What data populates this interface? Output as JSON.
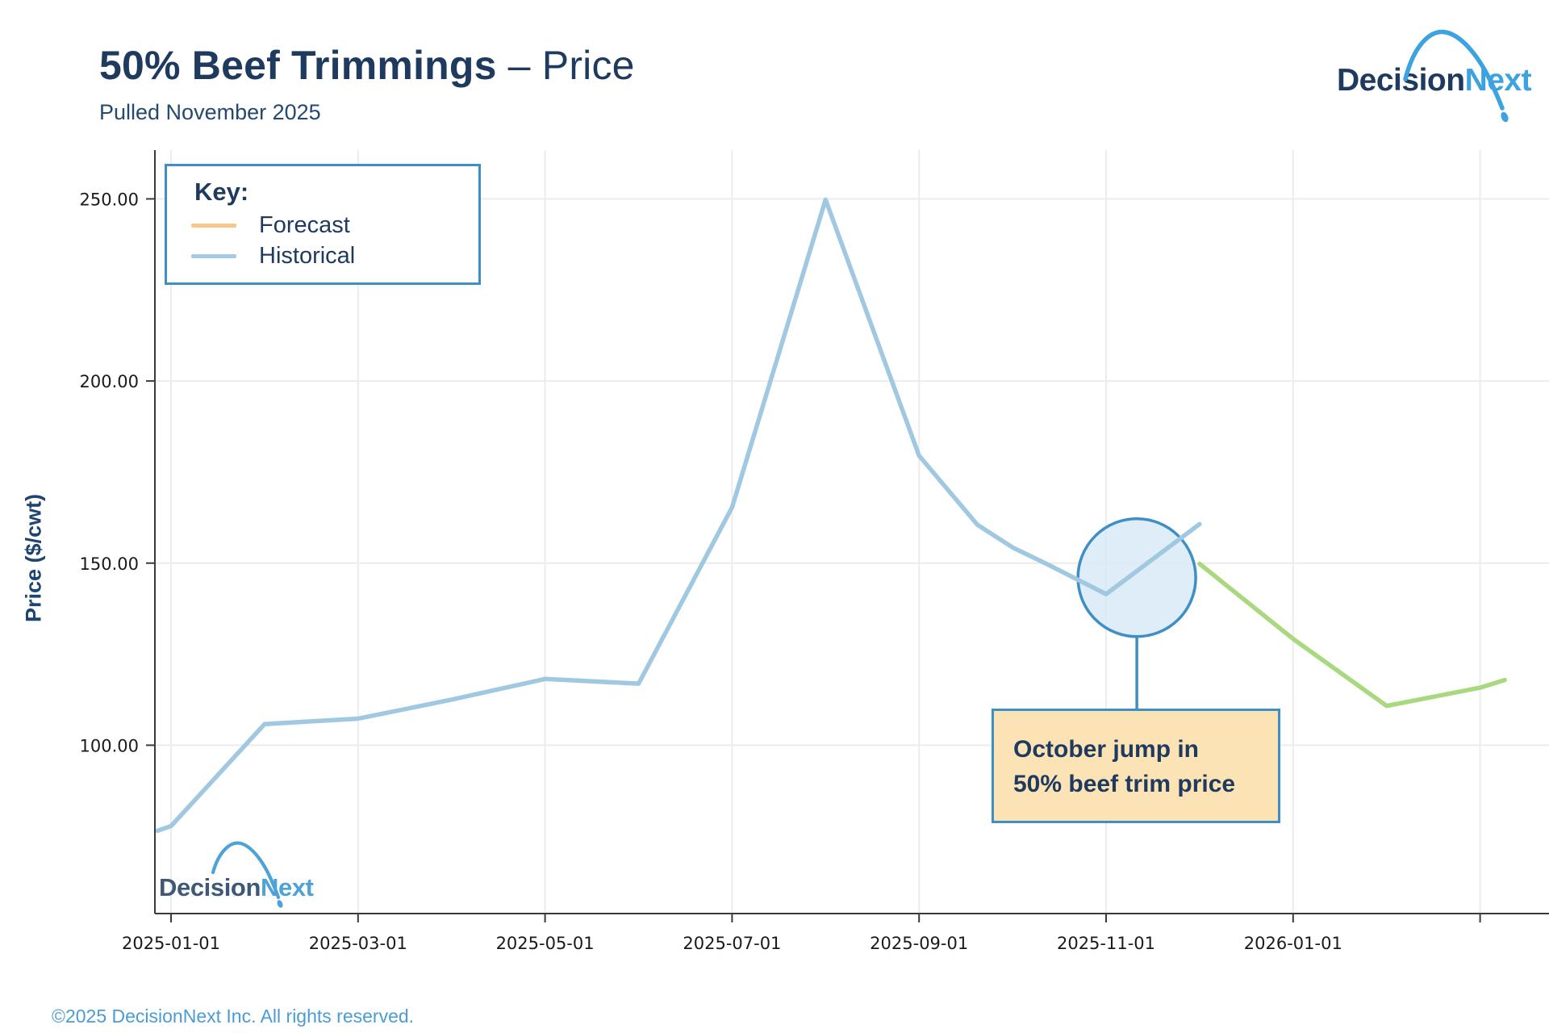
{
  "header": {
    "title_bold": "50% Beef Trimmings",
    "title_light": "– Price",
    "subtitle": "Pulled November 2025"
  },
  "logo": {
    "part1": "Decision",
    "part2": "Next"
  },
  "watermark_logo": {
    "part1": "Decision",
    "part2": "Next"
  },
  "legend": {
    "title": "Key:",
    "items": [
      {
        "label": "Forecast",
        "swatch_color": "#f5c88a"
      },
      {
        "label": "Historical",
        "swatch_color": "#a5cbe3"
      }
    ],
    "border_color": "#3e8fc6"
  },
  "annotation": {
    "line1": "October jump in",
    "line2": "50% beef trim price",
    "box_fill": "#fce3b5",
    "box_border": "#3e8fc6"
  },
  "footer": {
    "text": "©2025 DecisionNext Inc. All rights reserved."
  },
  "colors": {
    "historical_line": "#a0c8e0",
    "forecast_line": "#a9d87e",
    "gridline": "#ececec",
    "axis": "#3a3a3a",
    "tick_text": "#1a1a1a",
    "circle_stroke": "#3e8fc6",
    "circle_fill": "rgba(216,234,246,0.85)"
  },
  "chart_data": {
    "type": "line",
    "title": "50% Beef Trimmings – Price",
    "xlabel": "",
    "ylabel": "Price ($/cwt)",
    "ylim": [
      54,
      263
    ],
    "grid": true,
    "legend_position": "top-left",
    "y_ticks": [
      {
        "value": 100,
        "label": "100.00"
      },
      {
        "value": 150,
        "label": "150.00"
      },
      {
        "value": 200,
        "label": "200.00"
      },
      {
        "value": 250,
        "label": "250.00"
      }
    ],
    "x_ticks": [
      {
        "date": "2025-01-01",
        "label": "2025-01-01"
      },
      {
        "date": "2025-03-01",
        "label": "2025-03-01"
      },
      {
        "date": "2025-05-01",
        "label": "2025-05-01"
      },
      {
        "date": "2025-07-01",
        "label": "2025-07-01"
      },
      {
        "date": "2025-09-01",
        "label": "2025-09-01"
      },
      {
        "date": "2025-11-01",
        "label": "2025-11-01"
      },
      {
        "date": "2026-01-01",
        "label": "2026-01-01"
      },
      {
        "date": "2026-03-01",
        "label": ""
      }
    ],
    "series": [
      {
        "name": "Historical",
        "color": "#a0c8e0",
        "x": [
          "2024-12-27",
          "2025-01-01",
          "2025-02-01",
          "2025-03-01",
          "2025-04-01",
          "2025-05-01",
          "2025-06-01",
          "2025-07-01",
          "2025-08-01",
          "2025-09-01",
          "2025-09-09",
          "2025-09-20",
          "2025-10-01",
          "2025-10-12",
          "2025-11-01",
          "2025-12-01"
        ],
        "values": [
          76.5,
          77.8,
          105.8,
          107.3,
          112.5,
          118.2,
          116.9,
          165.3,
          249.8,
          179.5,
          171.5,
          160.5,
          154.3,
          149.8,
          141.5,
          160.7
        ]
      },
      {
        "name": "Forecast",
        "color": "#a9d87e",
        "x": [
          "2025-12-01",
          "2026-01-01",
          "2026-02-01",
          "2026-03-01",
          "2026-03-09"
        ],
        "values": [
          149.8,
          129.2,
          110.8,
          115.8,
          117.9
        ]
      }
    ],
    "annotation_circle": {
      "date": "2025-11-11",
      "value": 146,
      "radius_px": 73
    }
  }
}
